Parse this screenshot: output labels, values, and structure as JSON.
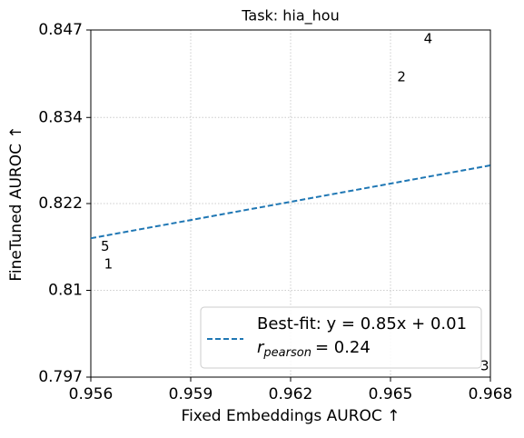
{
  "chart_data": {
    "type": "scatter",
    "title": "Task: hia_hou",
    "x_label": "Fixed Embeddings AUROC ↑",
    "y_label": "FineTuned AUROC ↑",
    "xlim": [
      0.956,
      0.968
    ],
    "xticks": [
      0.956,
      0.959,
      0.962,
      0.965,
      0.968
    ],
    "ylim": [
      0.797,
      0.847
    ],
    "yticks": [
      0.797,
      {
        "value": 0.8095,
        "label": "0.81"
      },
      0.822,
      {
        "value": 0.8344,
        "label": "0.834"
      },
      0.847
    ],
    "grid": true,
    "points": {
      "labels": [
        "4",
        "2",
        "5",
        "1",
        "3"
      ],
      "x": [
        0.966,
        0.9652,
        0.9563,
        0.9564,
        0.9677
      ],
      "values": [
        0.8457,
        0.8402,
        0.8158,
        0.8132,
        0.7986
      ]
    },
    "series": [
      {
        "name": "Best-fit: y = 0.85x + 0.01",
        "color": "#1f77b4",
        "x": [
          0.956,
          0.968
        ],
        "values": [
          0.817,
          0.8275
        ]
      }
    ],
    "legend_note": {
      "symbol": "r",
      "subscript": "pearson",
      "text": "= 0.24"
    },
    "legend": "lower right"
  }
}
